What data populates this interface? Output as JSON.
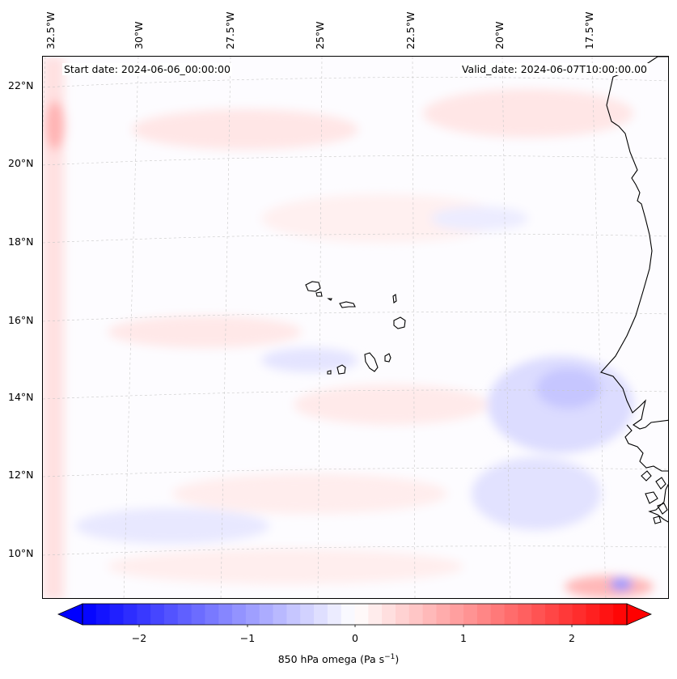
{
  "header": {
    "start_date": "Start date: 2024-06-06_00:00:00",
    "valid_date": "Valid_date: 2024-06-07T10:00:00.00"
  },
  "axes": {
    "lon_labels": [
      "32.5°W",
      "30°W",
      "27.5°W",
      "25°W",
      "22.5°W",
      "20°W",
      "17.5°W"
    ],
    "lat_labels": [
      "22°N",
      "20°N",
      "18°N",
      "16°N",
      "14°N",
      "12°N",
      "10°N"
    ]
  },
  "colorbar": {
    "label_main": "850 hPa omega (Pa s",
    "label_exp": "−1",
    "label_end": ")",
    "ticks": [
      "−2",
      "−1",
      "0",
      "1",
      "2"
    ],
    "min": -2.75,
    "max": 2.75,
    "low_color": "#0000ff",
    "mid_color": "#ffffff",
    "high_color": "#ff0000"
  },
  "map": {
    "background_color": "#fdfcff",
    "coast_color": "#000000",
    "grid_color": "#c8c8c8"
  }
}
